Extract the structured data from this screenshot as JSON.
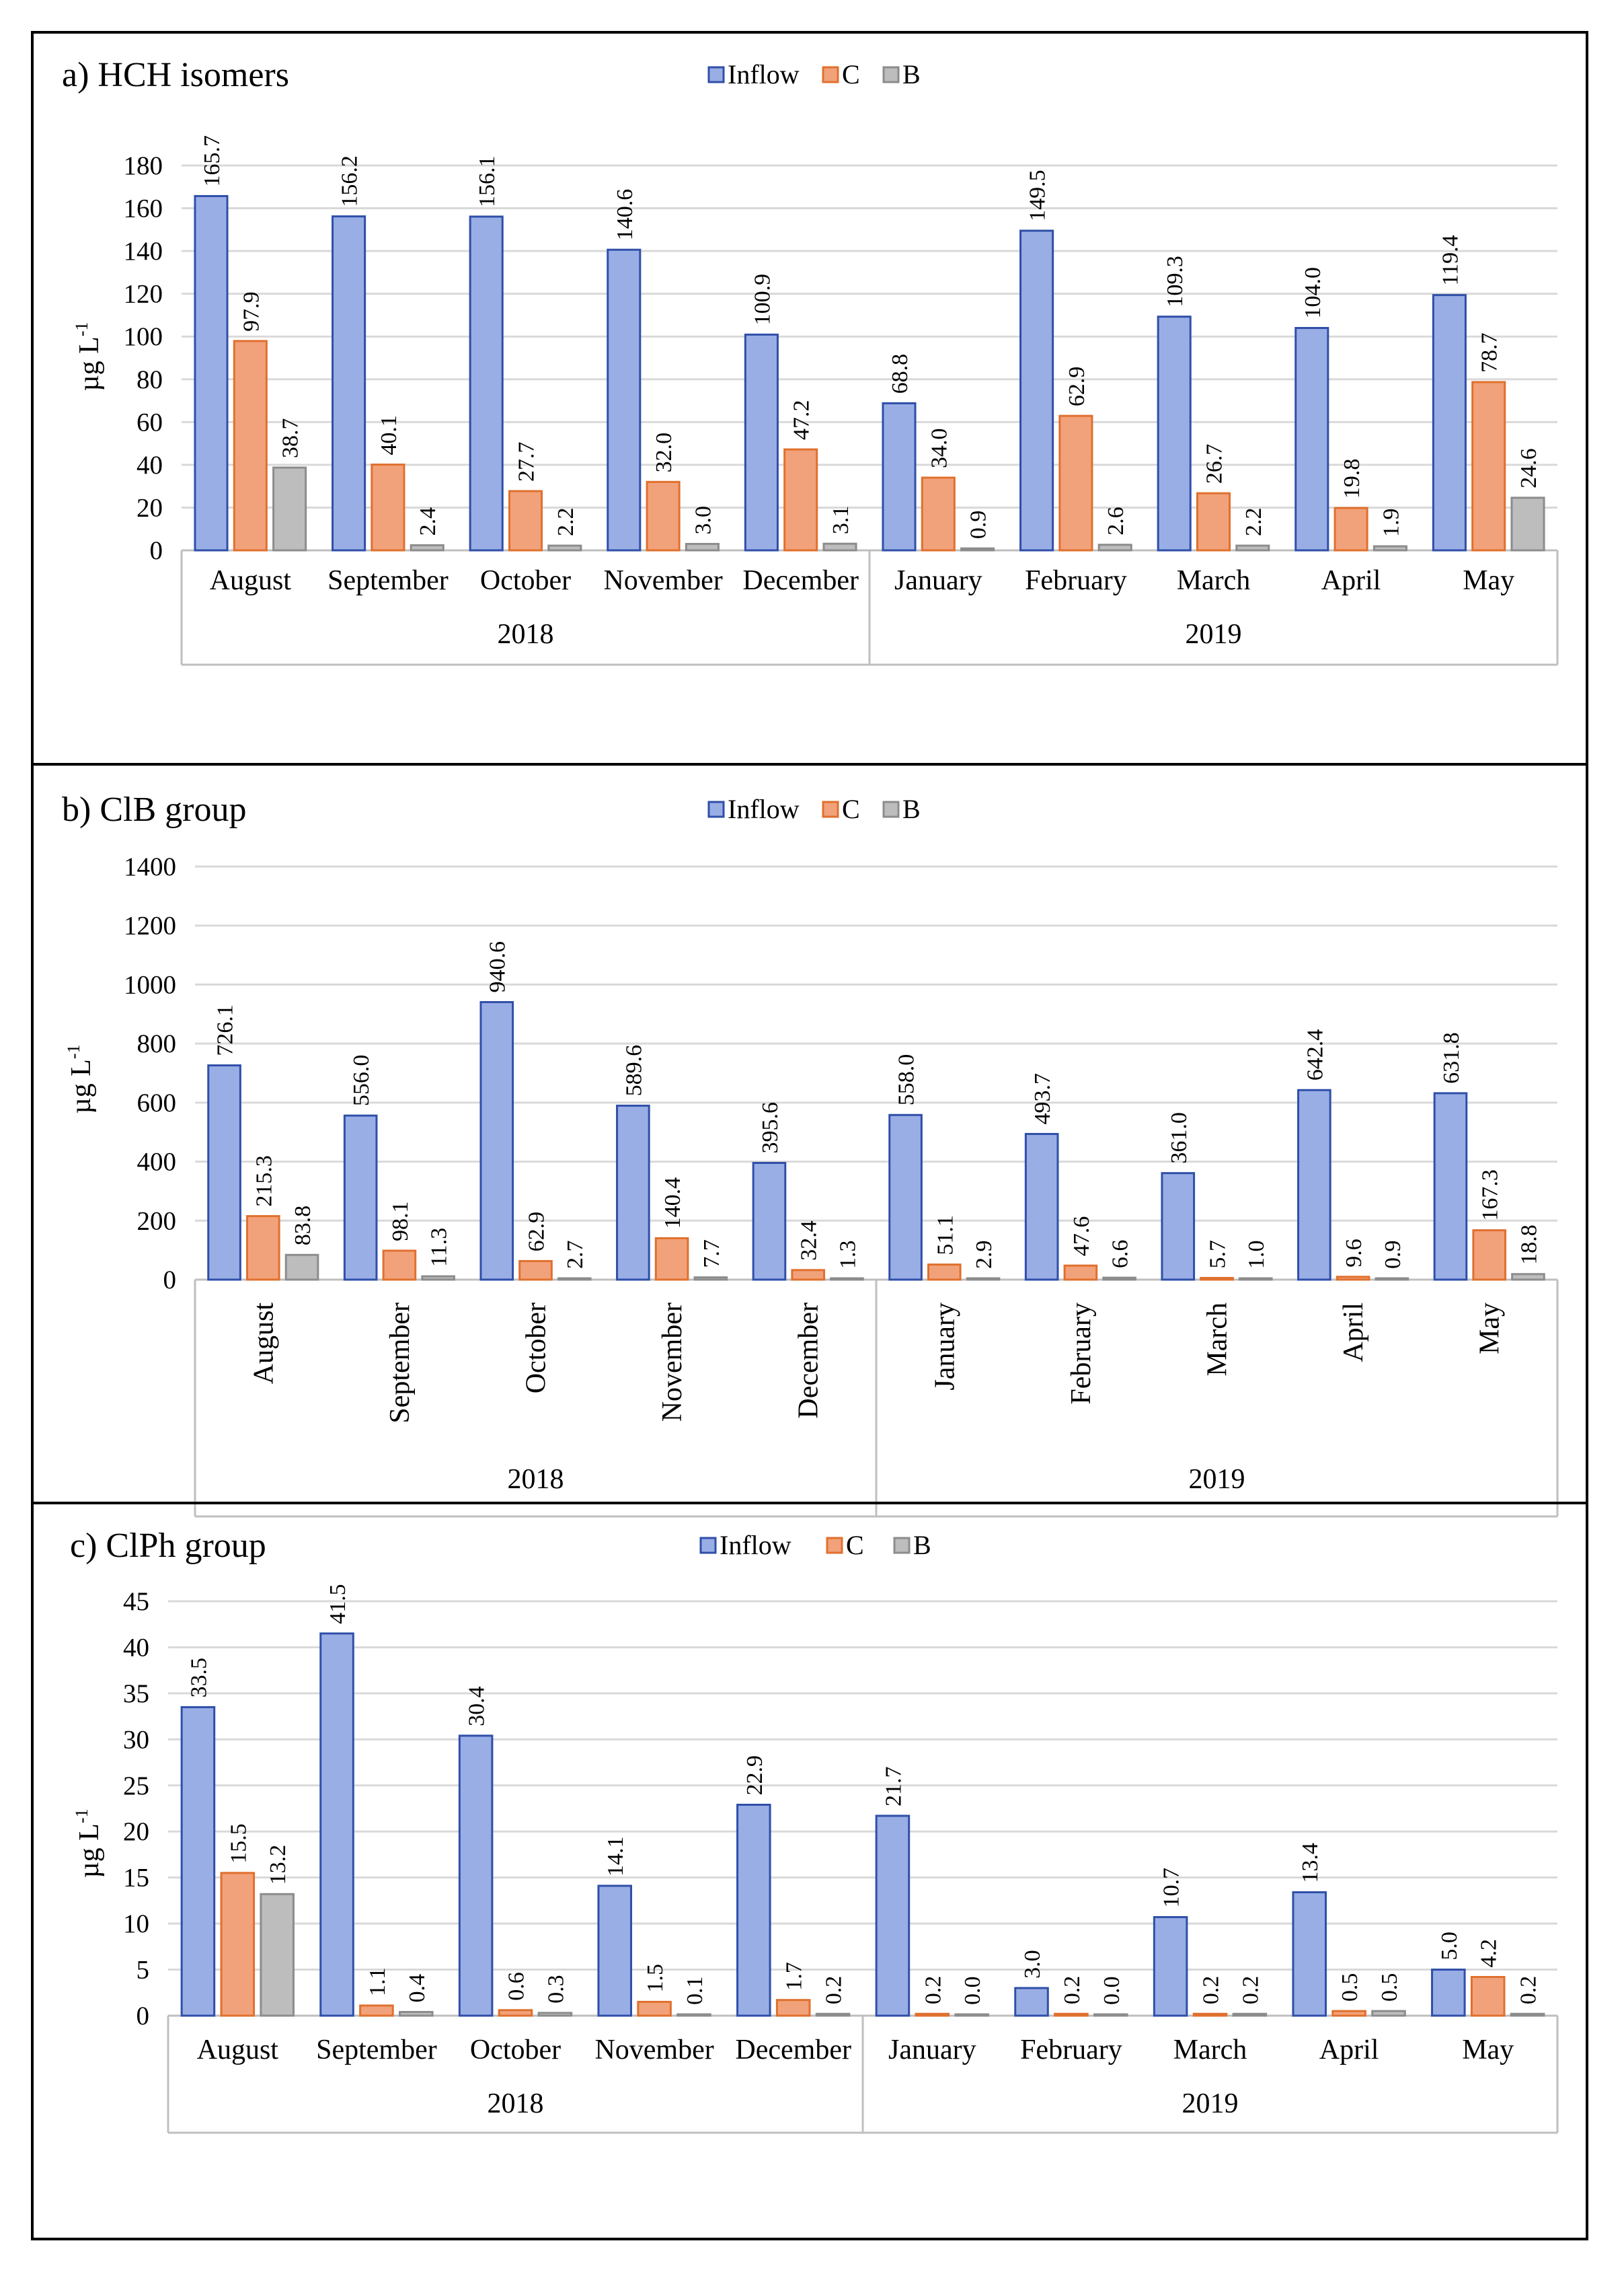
{
  "chart_data": [
    {
      "type": "bar",
      "title": "a) HCH isomers",
      "ylabel": "µg L",
      "ylabel_sup": "-1",
      "ylim": [
        0,
        180
      ],
      "yticks": [
        0,
        20,
        40,
        60,
        80,
        100,
        120,
        140,
        160,
        180
      ],
      "categories": [
        "August",
        "September",
        "October",
        "November",
        "December",
        "January",
        "February",
        "March",
        "April",
        "May"
      ],
      "years": [
        {
          "label": "2018",
          "count": 5
        },
        {
          "label": "2019",
          "count": 5
        }
      ],
      "series": [
        {
          "name": "Inflow",
          "values": [
            165.7,
            156.2,
            156.1,
            140.6,
            100.9,
            68.8,
            149.5,
            109.3,
            104.0,
            119.4
          ]
        },
        {
          "name": "C",
          "values": [
            97.9,
            40.1,
            27.7,
            32.0,
            47.2,
            34.0,
            62.9,
            26.7,
            19.8,
            78.7
          ]
        },
        {
          "name": "B",
          "values": [
            38.7,
            2.4,
            2.2,
            3.0,
            3.1,
            0.9,
            2.6,
            2.2,
            1.9,
            24.6
          ]
        }
      ],
      "data_labels": [
        [
          "165.7",
          "156.2",
          "156.1",
          "140.6",
          "100.9",
          "68.8",
          "149.5",
          "109.3",
          "104.0",
          "119.4"
        ],
        [
          "97.9",
          "40.1",
          "27.7",
          "32.0",
          "47.2",
          "34.0",
          "62.9",
          "26.7",
          "19.8",
          "78.7"
        ],
        [
          "38.7",
          "2.4",
          "2.2",
          "3.0",
          "3.1",
          "0.9",
          "2.6",
          "2.2",
          "1.9",
          "24.6"
        ]
      ],
      "tick_labels": [
        "0",
        "20",
        "40",
        "60",
        "80",
        "100",
        "120",
        "140",
        "160",
        "180"
      ],
      "rotate_categories": false
    },
    {
      "type": "bar",
      "title": "b) ClB group",
      "ylabel": "µg L",
      "ylabel_sup": "-1",
      "ylim": [
        0,
        1400
      ],
      "yticks": [
        0,
        200,
        400,
        600,
        800,
        1000,
        1200,
        1400
      ],
      "categories": [
        "August",
        "September",
        "October",
        "November",
        "December",
        "January",
        "February",
        "March",
        "April",
        "May"
      ],
      "years": [
        {
          "label": "2018",
          "count": 5
        },
        {
          "label": "2019",
          "count": 5
        }
      ],
      "series": [
        {
          "name": "Inflow",
          "values": [
            726.1,
            556.0,
            940.6,
            589.6,
            395.6,
            558.0,
            493.7,
            361.0,
            642.4,
            631.8
          ]
        },
        {
          "name": "C",
          "values": [
            215.3,
            98.1,
            62.9,
            140.4,
            32.4,
            51.1,
            47.6,
            5.7,
            9.6,
            167.3
          ]
        },
        {
          "name": "B",
          "values": [
            83.8,
            11.3,
            2.7,
            7.7,
            1.3,
            2.9,
            6.6,
            1.0,
            0.9,
            18.8
          ]
        }
      ],
      "data_labels": [
        [
          "726.1",
          "556.0",
          "940.6",
          "589.6",
          "395.6",
          "558.0",
          "493.7",
          "361.0",
          "642.4",
          "631.8"
        ],
        [
          "215.3",
          "98.1",
          "62.9",
          "140.4",
          "32.4",
          "51.1",
          "47.6",
          "5.7",
          "9.6",
          "167.3"
        ],
        [
          "83.8",
          "11.3",
          "2.7",
          "7.7",
          "1.3",
          "2.9",
          "6.6",
          "1.0",
          "0.9",
          "18.8"
        ]
      ],
      "tick_labels": [
        "0",
        "200",
        "400",
        "600",
        "800",
        "1000",
        "1200",
        "1400"
      ],
      "rotate_categories": true
    },
    {
      "type": "bar",
      "title": "c) ClPh group",
      "ylabel": "µg L",
      "ylabel_sup": "-1",
      "ylim": [
        0,
        45
      ],
      "yticks": [
        0,
        5,
        10,
        15,
        20,
        25,
        30,
        35,
        40,
        45
      ],
      "categories": [
        "August",
        "September",
        "October",
        "November",
        "December",
        "January",
        "February",
        "March",
        "April",
        "May"
      ],
      "years": [
        {
          "label": "2018",
          "count": 5
        },
        {
          "label": "2019",
          "count": 5
        }
      ],
      "series": [
        {
          "name": "Inflow",
          "values": [
            33.5,
            41.5,
            30.4,
            14.1,
            22.9,
            21.7,
            3.0,
            10.7,
            13.4,
            5.0
          ]
        },
        {
          "name": "C",
          "values": [
            15.5,
            1.1,
            0.6,
            1.5,
            1.7,
            0.2,
            0.2,
            0.2,
            0.5,
            4.2
          ]
        },
        {
          "name": "B",
          "values": [
            13.2,
            0.4,
            0.3,
            0.1,
            0.2,
            0.0,
            0.0,
            0.2,
            0.5,
            0.2
          ]
        }
      ],
      "data_labels": [
        [
          "33.5",
          "41.5",
          "30.4",
          "14.1",
          "22.9",
          "21.7",
          "3.0",
          "10.7",
          "13.4",
          "5.0"
        ],
        [
          "15.5",
          "1.1",
          "0.6",
          "1.5",
          "1.7",
          "0.2",
          "0.2",
          "0.2",
          "0.5",
          "4.2"
        ],
        [
          "13.2",
          "0.4",
          "0.3",
          "0.1",
          "0.2",
          "0.0",
          "0.0",
          "0.2",
          "0.5",
          "0.2"
        ]
      ],
      "tick_labels": [
        "0",
        "5",
        "10",
        "15",
        "20",
        "25",
        "30",
        "35",
        "40",
        "45"
      ],
      "rotate_categories": false
    }
  ],
  "legend": [
    "Inflow",
    "C",
    "B"
  ],
  "colors": {
    "Inflow": "#9aaee6",
    "Inflow_stroke": "#2f4fa8",
    "C": "#f2a27a",
    "C_stroke": "#e0702e",
    "B": "#bdbdbd",
    "B_stroke": "#8c8c8c",
    "grid": "#d9d9d9",
    "frame": "#000000",
    "axis": "#bfbfbf"
  }
}
